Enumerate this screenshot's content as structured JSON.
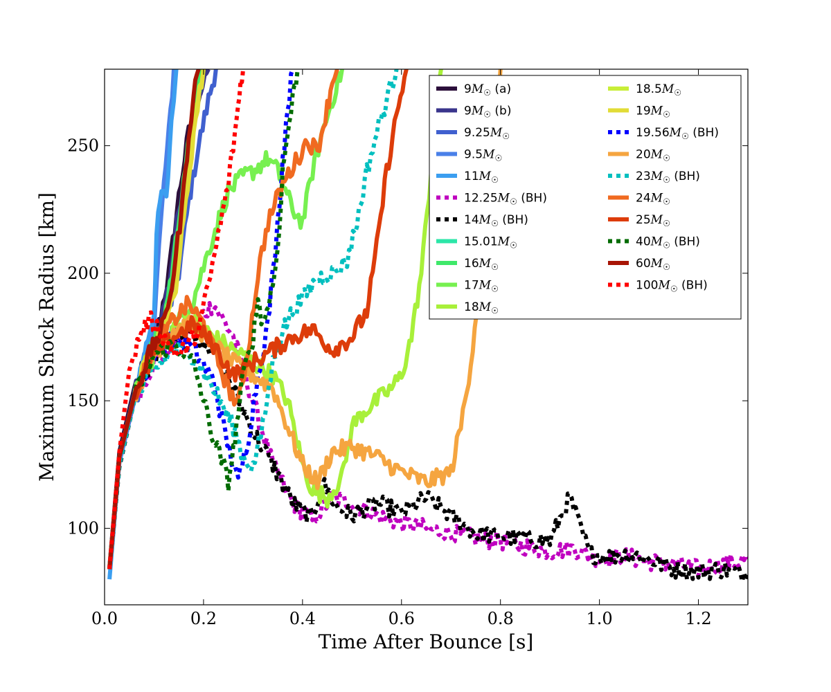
{
  "chart_data": {
    "type": "line",
    "title": "",
    "xlabel": "Time After Bounce [s]",
    "ylabel": "Maximum Shock Radius [km]",
    "xlim": [
      0.0,
      1.3
    ],
    "ylim": [
      70,
      280
    ],
    "xticks": [
      0.0,
      0.2,
      0.4,
      0.6,
      0.8,
      1.0,
      1.2
    ],
    "yticks": [
      100,
      150,
      200,
      250
    ],
    "xtick_labels": [
      "0.0",
      "0.2",
      "0.4",
      "0.6",
      "0.8",
      "1.0",
      "1.2"
    ],
    "ytick_labels": [
      "100",
      "150",
      "200",
      "250"
    ],
    "grid": false,
    "legend_position": "top-right",
    "legend_columns": 2,
    "series": [
      {
        "name": "9M☉ (a)",
        "mass": "9",
        "suffix": "(a)",
        "color": "#2c0f3b",
        "dashed": false,
        "x": [
          0.01,
          0.03,
          0.06,
          0.09,
          0.11,
          0.13,
          0.15,
          0.17,
          0.19,
          0.205
        ],
        "y": [
          85,
          130,
          155,
          168,
          180,
          200,
          230,
          255,
          270,
          280
        ]
      },
      {
        "name": "9M☉ (b)",
        "mass": "9",
        "suffix": "(b)",
        "color": "#3a358c",
        "dashed": false,
        "x": [
          0.01,
          0.03,
          0.06,
          0.09,
          0.11,
          0.13,
          0.15,
          0.17,
          0.19,
          0.21
        ],
        "y": [
          84,
          128,
          153,
          166,
          178,
          196,
          225,
          250,
          268,
          280
        ]
      },
      {
        "name": "9.25M☉",
        "mass": "9.25",
        "suffix": "",
        "color": "#4060cf",
        "dashed": false,
        "x": [
          0.01,
          0.03,
          0.06,
          0.09,
          0.12,
          0.15,
          0.17,
          0.19,
          0.21,
          0.225
        ],
        "y": [
          84,
          126,
          150,
          164,
          178,
          200,
          228,
          250,
          268,
          280
        ]
      },
      {
        "name": "9.5M☉",
        "mass": "9.5",
        "suffix": "",
        "color": "#4a80e8",
        "dashed": false,
        "x": [
          0.01,
          0.03,
          0.06,
          0.08,
          0.1,
          0.11,
          0.12,
          0.13,
          0.14
        ],
        "y": [
          84,
          126,
          150,
          165,
          180,
          210,
          235,
          255,
          280
        ]
      },
      {
        "name": "11M☉",
        "mass": "11",
        "suffix": "",
        "color": "#3b9ef0",
        "dashed": false,
        "x": [
          0.01,
          0.03,
          0.06,
          0.08,
          0.1,
          0.105,
          0.115,
          0.125,
          0.135,
          0.145
        ],
        "y": [
          80,
          127,
          152,
          168,
          185,
          215,
          232,
          228,
          260,
          280
        ]
      },
      {
        "name": "12.25M☉ (BH)",
        "mass": "12.25",
        "suffix": "(BH)",
        "color": "#bf00bf",
        "dashed": true,
        "x": [
          0.01,
          0.03,
          0.06,
          0.1,
          0.14,
          0.18,
          0.22,
          0.26,
          0.3,
          0.34,
          0.38,
          0.42,
          0.46,
          0.5,
          0.55,
          0.6,
          0.65,
          0.7,
          0.75,
          0.8,
          0.85,
          0.9,
          0.95,
          1.0,
          1.05,
          1.1,
          1.15,
          1.2,
          1.25,
          1.3
        ],
        "y": [
          84,
          125,
          150,
          165,
          172,
          180,
          188,
          175,
          150,
          125,
          110,
          103,
          112,
          110,
          105,
          102,
          100,
          98,
          96,
          95,
          93,
          91,
          92,
          88,
          89,
          87,
          86,
          84,
          86,
          88
        ]
      },
      {
        "name": "14M☉ (BH)",
        "mass": "14",
        "suffix": "(BH)",
        "color": "#000000",
        "dashed": true,
        "x": [
          0.01,
          0.03,
          0.06,
          0.1,
          0.14,
          0.18,
          0.22,
          0.26,
          0.3,
          0.34,
          0.38,
          0.42,
          0.44,
          0.47,
          0.5,
          0.55,
          0.6,
          0.65,
          0.7,
          0.75,
          0.8,
          0.85,
          0.9,
          0.94,
          0.98,
          1.02,
          1.06,
          1.1,
          1.15,
          1.2,
          1.25,
          1.3
        ],
        "y": [
          84,
          124,
          150,
          168,
          175,
          177,
          170,
          155,
          138,
          125,
          110,
          104,
          118,
          108,
          105,
          110,
          106,
          112,
          105,
          98,
          97,
          96,
          95,
          112,
          90,
          89,
          90,
          88,
          84,
          83,
          84,
          82
        ]
      },
      {
        "name": "15.01M☉",
        "mass": "15.01",
        "suffix": "",
        "color": "#2ce6a8",
        "dashed": false,
        "x": [
          0.01,
          0.03,
          0.06,
          0.09,
          0.12,
          0.14,
          0.16,
          0.18,
          0.2
        ],
        "y": [
          84,
          128,
          152,
          168,
          180,
          200,
          235,
          260,
          280
        ]
      },
      {
        "name": "16M☉",
        "mass": "16",
        "suffix": "",
        "color": "#3fe86a",
        "dashed": false,
        "x": [
          0.01,
          0.03,
          0.06,
          0.09,
          0.12,
          0.14,
          0.16,
          0.18,
          0.195
        ],
        "y": [
          84,
          128,
          152,
          168,
          182,
          205,
          238,
          262,
          280
        ]
      },
      {
        "name": "17M☉",
        "mass": "17",
        "suffix": "",
        "color": "#77f050",
        "dashed": false,
        "x": [
          0.01,
          0.03,
          0.06,
          0.1,
          0.14,
          0.18,
          0.22,
          0.25,
          0.28,
          0.3,
          0.33,
          0.35,
          0.38,
          0.4,
          0.42,
          0.44,
          0.46,
          0.48
        ],
        "y": [
          84,
          128,
          152,
          168,
          178,
          190,
          215,
          232,
          238,
          240,
          245,
          240,
          225,
          220,
          240,
          255,
          268,
          280
        ]
      },
      {
        "name": "18M☉",
        "mass": "18",
        "suffix": "",
        "color": "#a8f03a",
        "dashed": false,
        "x": [
          0.01,
          0.03,
          0.06,
          0.1,
          0.14,
          0.18,
          0.22,
          0.26,
          0.3,
          0.34,
          0.37,
          0.4,
          0.42,
          0.45,
          0.48,
          0.5,
          0.52,
          0.55,
          0.58,
          0.6,
          0.62,
          0.64,
          0.66,
          0.68
        ],
        "y": [
          84,
          128,
          152,
          168,
          178,
          182,
          175,
          170,
          165,
          160,
          150,
          125,
          115,
          112,
          120,
          140,
          145,
          150,
          155,
          160,
          175,
          200,
          240,
          280
        ]
      },
      {
        "name": "18.5M☉",
        "mass": "18.5",
        "suffix": "",
        "color": "#c8ee38",
        "dashed": false,
        "x": [
          0.01,
          0.03,
          0.06,
          0.09,
          0.12,
          0.14,
          0.16,
          0.18,
          0.2
        ],
        "y": [
          84,
          128,
          152,
          168,
          178,
          195,
          228,
          258,
          280
        ]
      },
      {
        "name": "19M☉",
        "mass": "19",
        "suffix": "",
        "color": "#e2dc36",
        "dashed": false,
        "x": [
          0.01,
          0.03,
          0.06,
          0.09,
          0.12,
          0.14,
          0.16,
          0.18,
          0.2
        ],
        "y": [
          84,
          128,
          152,
          168,
          178,
          190,
          220,
          255,
          280
        ]
      },
      {
        "name": "19.56M☉ (BH)",
        "mass": "19.56",
        "suffix": "(BH)",
        "color": "#0000ff",
        "dashed": true,
        "x": [
          0.01,
          0.03,
          0.06,
          0.1,
          0.14,
          0.18,
          0.22,
          0.24,
          0.26,
          0.27,
          0.29,
          0.31,
          0.33,
          0.34,
          0.35,
          0.36,
          0.37,
          0.38
        ],
        "y": [
          84,
          127,
          152,
          168,
          175,
          170,
          158,
          140,
          125,
          118,
          135,
          160,
          180,
          200,
          220,
          245,
          265,
          280
        ]
      },
      {
        "name": "20M☉",
        "mass": "20",
        "suffix": "",
        "color": "#f5a540",
        "dashed": false,
        "x": [
          0.01,
          0.03,
          0.06,
          0.1,
          0.14,
          0.18,
          0.22,
          0.26,
          0.3,
          0.34,
          0.37,
          0.4,
          0.43,
          0.46,
          0.5,
          0.55,
          0.6,
          0.65,
          0.7,
          0.72,
          0.74,
          0.76,
          0.78,
          0.8
        ],
        "y": [
          84,
          128,
          152,
          168,
          178,
          180,
          172,
          165,
          160,
          155,
          140,
          125,
          118,
          130,
          132,
          128,
          122,
          118,
          122,
          140,
          165,
          200,
          240,
          280
        ]
      },
      {
        "name": "23M☉ (BH)",
        "mass": "23",
        "suffix": "(BH)",
        "color": "#00bfbf",
        "dashed": true,
        "x": [
          0.01,
          0.03,
          0.06,
          0.1,
          0.14,
          0.18,
          0.22,
          0.26,
          0.28,
          0.3,
          0.32,
          0.34,
          0.36,
          0.38,
          0.4,
          0.43,
          0.46,
          0.49,
          0.51,
          0.53,
          0.55,
          0.57,
          0.59
        ],
        "y": [
          84,
          125,
          150,
          162,
          170,
          168,
          155,
          140,
          128,
          124,
          140,
          165,
          178,
          185,
          190,
          198,
          200,
          205,
          220,
          240,
          255,
          268,
          280
        ]
      },
      {
        "name": "24M☉",
        "mass": "24",
        "suffix": "",
        "color": "#f06a20",
        "dashed": false,
        "x": [
          0.01,
          0.03,
          0.06,
          0.1,
          0.14,
          0.17,
          0.2,
          0.23,
          0.25,
          0.27,
          0.29,
          0.31,
          0.33,
          0.36,
          0.39,
          0.41,
          0.43,
          0.45,
          0.46,
          0.47
        ],
        "y": [
          84,
          128,
          152,
          170,
          182,
          188,
          180,
          165,
          155,
          148,
          170,
          200,
          220,
          235,
          245,
          252,
          248,
          265,
          275,
          280
        ]
      },
      {
        "name": "25M☉",
        "mass": "25",
        "suffix": "",
        "color": "#dd3c0a",
        "dashed": false,
        "x": [
          0.01,
          0.03,
          0.06,
          0.1,
          0.14,
          0.18,
          0.22,
          0.26,
          0.3,
          0.34,
          0.38,
          0.42,
          0.46,
          0.5,
          0.53,
          0.55,
          0.57,
          0.59,
          0.61
        ],
        "y": [
          84,
          128,
          152,
          168,
          175,
          180,
          172,
          160,
          165,
          170,
          175,
          178,
          170,
          175,
          185,
          210,
          240,
          262,
          280
        ]
      },
      {
        "name": "40M☉ (BH)",
        "mass": "40",
        "suffix": "(BH)",
        "color": "#006b00",
        "dashed": true,
        "x": [
          0.01,
          0.03,
          0.06,
          0.1,
          0.14,
          0.18,
          0.2,
          0.22,
          0.24,
          0.25,
          0.26,
          0.27,
          0.28,
          0.3,
          0.31,
          0.32,
          0.34,
          0.35,
          0.36,
          0.37,
          0.38,
          0.39
        ],
        "y": [
          84,
          128,
          152,
          168,
          172,
          165,
          150,
          135,
          125,
          118,
          130,
          145,
          160,
          175,
          190,
          180,
          195,
          210,
          240,
          255,
          268,
          280
        ]
      },
      {
        "name": "60M☉",
        "mass": "60",
        "suffix": "",
        "color": "#a81505",
        "dashed": false,
        "x": [
          0.01,
          0.03,
          0.06,
          0.09,
          0.12,
          0.14,
          0.16,
          0.17,
          0.18,
          0.19
        ],
        "y": [
          84,
          128,
          152,
          168,
          180,
          200,
          232,
          255,
          270,
          280
        ]
      },
      {
        "name": "100M☉ (BH)",
        "mass": "100",
        "suffix": "(BH)",
        "color": "#ff0000",
        "dashed": true,
        "x": [
          0.01,
          0.03,
          0.05,
          0.07,
          0.09,
          0.11,
          0.13,
          0.15,
          0.17,
          0.19,
          0.21,
          0.23,
          0.25,
          0.26,
          0.27,
          0.275,
          0.28
        ],
        "y": [
          84,
          130,
          162,
          175,
          182,
          178,
          172,
          168,
          172,
          178,
          195,
          215,
          235,
          250,
          265,
          275,
          280
        ]
      }
    ]
  }
}
